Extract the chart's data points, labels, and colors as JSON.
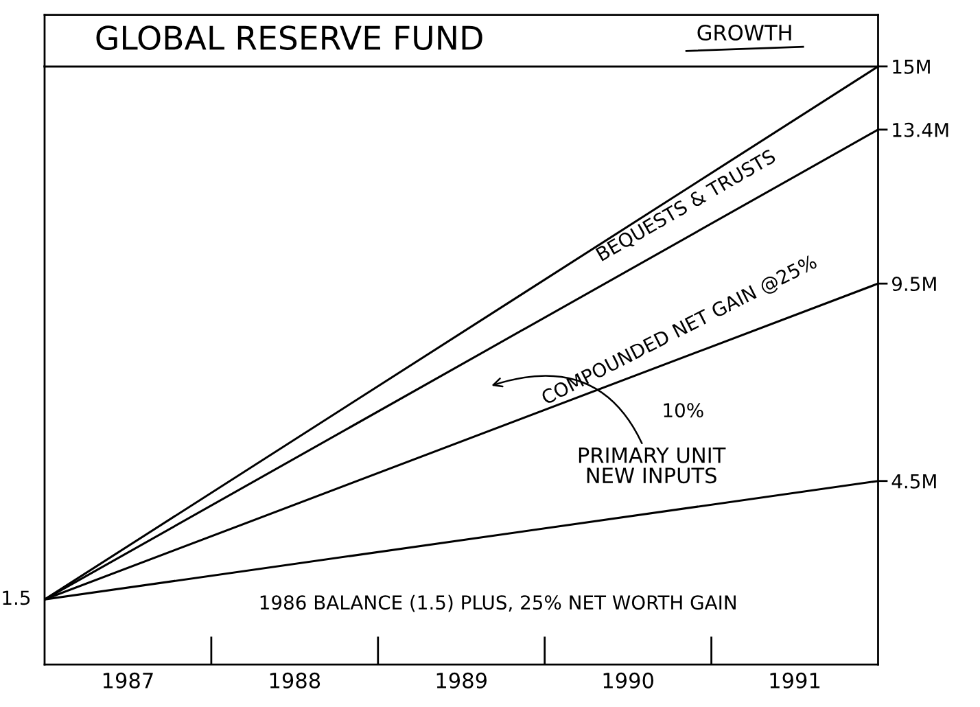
{
  "chart_data": {
    "type": "line",
    "title": "GLOBAL RESERVE FUND",
    "subtitle": "GROWTH",
    "x": [
      1986.5,
      1991.5
    ],
    "xlim": [
      1986.5,
      1991.5
    ],
    "xticks": [
      1987,
      1988,
      1989,
      1990,
      1991
    ],
    "ylim": [
      -0.15,
      15
    ],
    "yticks": [
      {
        "value": 4.5,
        "label": "4.5M"
      },
      {
        "value": 9.5,
        "label": "9.5M"
      },
      {
        "value": 13.4,
        "label": "13.4M"
      },
      {
        "value": 15,
        "label": "15M"
      }
    ],
    "series": [
      {
        "color": "#000000",
        "values": [
          1.5,
          15
        ]
      },
      {
        "color": "#000000",
        "values": [
          1.5,
          13.4
        ]
      },
      {
        "color": "#000000",
        "values": [
          1.5,
          9.5
        ]
      },
      {
        "color": "#000000",
        "values": [
          1.5,
          4.5
        ]
      }
    ],
    "annotations": [
      "BEQUESTS & TRUSTS",
      "COMPOUNDED NET GAIN @25%",
      "10%",
      "PRIMARY UNIT\nNEW INPUTS",
      "1986 BALANCE (1.5) PLUS, 25% NET WORTH GAIN",
      {
        "text": "1.5",
        "x": 1986.5,
        "y": 1.5
      }
    ],
    "grid": false,
    "legend": false,
    "marker": "none",
    "line_style": "solid"
  }
}
